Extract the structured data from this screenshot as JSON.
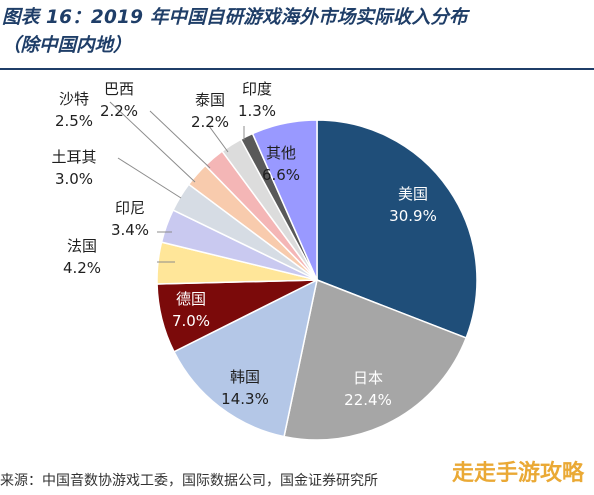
{
  "header": {
    "title": "图表 16：2019 年中国自研游戏海外市场实际收入分布",
    "subtitle": "（除中国内地）"
  },
  "source": "来源：中国音数协游戏工委，国际数据公司，国金证券研究所",
  "watermark": "走走手游攻略",
  "chart_data": {
    "type": "pie",
    "unit": "%",
    "slices": [
      {
        "label": "美国",
        "value": 30.9,
        "display": "30.9%",
        "color": "#1f4e79"
      },
      {
        "label": "日本",
        "value": 22.4,
        "display": "22.4%",
        "color": "#a6a6a6"
      },
      {
        "label": "韩国",
        "value": 14.3,
        "display": "14.3%",
        "color": "#b4c7e7"
      },
      {
        "label": "德国",
        "value": 7.0,
        "display": "7.0%",
        "color": "#7b0a0a"
      },
      {
        "label": "法国",
        "value": 4.2,
        "display": "4.2%",
        "color": "#ffe699"
      },
      {
        "label": "印尼",
        "value": 3.4,
        "display": "3.4%",
        "color": "#c9c9f0"
      },
      {
        "label": "土耳其",
        "value": 3.0,
        "display": "3.0%",
        "color": "#d6dce4"
      },
      {
        "label": "沙特",
        "value": 2.5,
        "display": "2.5%",
        "color": "#f8cbad"
      },
      {
        "label": "巴西",
        "value": 2.2,
        "display": "2.2%",
        "color": "#f4b6b6"
      },
      {
        "label": "泰国",
        "value": 2.2,
        "display": "2.2%",
        "color": "#dcdcdc"
      },
      {
        "label": "印度",
        "value": 1.3,
        "display": "1.3%",
        "color": "#595959"
      },
      {
        "label": "其他",
        "value": 6.6,
        "display": "6.6%",
        "color": "#9999ff"
      }
    ]
  }
}
